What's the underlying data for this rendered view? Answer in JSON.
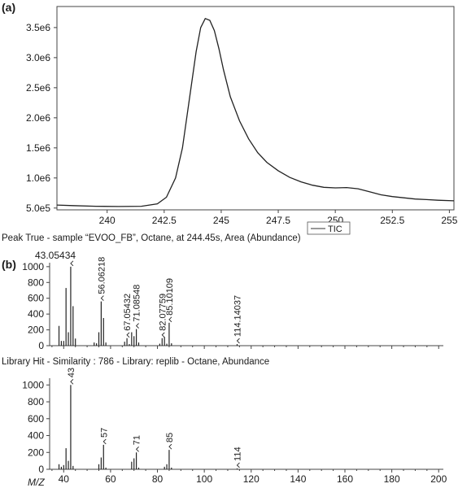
{
  "panel_a": {
    "label": "(a)"
  },
  "panel_b": {
    "label": "(b)"
  },
  "captions": {
    "peak_true": "Peak True - sample “EVOO_FB”, Octane, at 244.45s, Area (Abundance)",
    "library_hit": "Library Hit - Similarity : 786 - Library: replib - Octane, Abundance"
  },
  "chart_data": [
    {
      "type": "line",
      "title": "",
      "xlabel": "",
      "ylabel": "",
      "xlim": [
        237.8,
        255.2
      ],
      "ylim": [
        470000,
        3850000
      ],
      "x_ticks": [
        240,
        242.5,
        245,
        247.5,
        250,
        252.5,
        255
      ],
      "x_tick_labels": [
        "240",
        "242.5",
        "245",
        "247.5",
        "250",
        "252.5",
        "255"
      ],
      "y_ticks": [
        500000,
        1000000,
        1500000,
        2000000,
        2500000,
        3000000,
        3500000
      ],
      "y_tick_labels": [
        "5.0e5",
        "1.0e6",
        "1.5e6",
        "2.0e6",
        "2.5e6",
        "3.0e6",
        "3.5e6"
      ],
      "legend": {
        "position": "bottom-right",
        "entries": [
          "TIC"
        ]
      },
      "series": [
        {
          "name": "TIC",
          "x": [
            237.8,
            238.5,
            239.5,
            240.5,
            241.5,
            242.2,
            242.6,
            243.0,
            243.3,
            243.6,
            243.9,
            244.1,
            244.3,
            244.5,
            244.7,
            244.9,
            245.1,
            245.4,
            245.8,
            246.2,
            246.6,
            247.0,
            247.5,
            248.0,
            248.5,
            249.0,
            249.5,
            250.0,
            250.5,
            251.0,
            251.5,
            252.0,
            252.5,
            253.0,
            253.5,
            254.0,
            254.5,
            255.2
          ],
          "y": [
            550000,
            540000,
            530000,
            525000,
            530000,
            570000,
            680000,
            1000000,
            1500000,
            2300000,
            3100000,
            3500000,
            3650000,
            3620000,
            3450000,
            3150000,
            2800000,
            2350000,
            1950000,
            1650000,
            1420000,
            1260000,
            1120000,
            1010000,
            935000,
            880000,
            845000,
            835000,
            840000,
            820000,
            770000,
            720000,
            690000,
            670000,
            650000,
            640000,
            630000,
            620000
          ]
        }
      ]
    },
    {
      "type": "bar",
      "title": "",
      "xlabel": "",
      "ylabel": "",
      "xlim": [
        34,
        202
      ],
      "ylim": [
        0,
        1050
      ],
      "y_ticks": [
        0,
        200,
        400,
        600,
        800,
        1000
      ],
      "y_tick_labels": [
        "0",
        "200",
        "400",
        "600",
        "800",
        "1000"
      ],
      "x_ticks": [
        40,
        60,
        80,
        100,
        120,
        140,
        160,
        180,
        200
      ],
      "peak_labels": [
        {
          "x": 43,
          "y": 1000,
          "text": "43.05434"
        },
        {
          "x": 56,
          "y": 560,
          "text": "56.06218"
        },
        {
          "x": 67,
          "y": 95,
          "text": "67.05432"
        },
        {
          "x": 71,
          "y": 210,
          "text": "71.08548"
        },
        {
          "x": 82,
          "y": 95,
          "text": "82.07759"
        },
        {
          "x": 85,
          "y": 290,
          "text": "85.10109"
        },
        {
          "x": 114,
          "y": 20,
          "text": "114.14037"
        }
      ],
      "x": [
        38,
        39,
        40,
        41,
        42,
        43,
        44,
        45,
        53,
        54,
        55,
        56,
        57,
        58,
        66,
        67,
        68,
        69,
        70,
        71,
        72,
        81,
        82,
        83,
        84,
        85,
        86,
        114
      ],
      "values": [
        250,
        60,
        60,
        730,
        170,
        1000,
        500,
        90,
        40,
        30,
        170,
        560,
        350,
        40,
        50,
        95,
        20,
        170,
        120,
        210,
        40,
        25,
        95,
        110,
        25,
        290,
        30,
        20
      ]
    },
    {
      "type": "bar",
      "title": "",
      "xlabel": "M/Z",
      "ylabel": "",
      "xlim": [
        34,
        202
      ],
      "ylim": [
        0,
        1080
      ],
      "y_ticks": [
        0,
        200,
        400,
        600,
        800,
        1000
      ],
      "y_tick_labels": [
        "0",
        "200",
        "400",
        "600",
        "800",
        "1000"
      ],
      "x_ticks": [
        40,
        60,
        80,
        100,
        120,
        140,
        160,
        180,
        200
      ],
      "x_tick_labels": [
        "40",
        "60",
        "80",
        "100",
        "120",
        "140",
        "160",
        "180",
        "200"
      ],
      "peak_labels": [
        {
          "x": 43,
          "y": 1000,
          "text": "43"
        },
        {
          "x": 57,
          "y": 290,
          "text": "57"
        },
        {
          "x": 71,
          "y": 200,
          "text": "71"
        },
        {
          "x": 85,
          "y": 230,
          "text": "85"
        },
        {
          "x": 114,
          "y": 10,
          "text": "114"
        }
      ],
      "x": [
        38,
        39,
        40,
        41,
        42,
        43,
        44,
        55,
        56,
        57,
        58,
        69,
        70,
        71,
        72,
        83,
        84,
        85,
        86,
        114
      ],
      "values": [
        60,
        30,
        50,
        250,
        100,
        1000,
        40,
        60,
        140,
        290,
        20,
        90,
        130,
        200,
        20,
        30,
        60,
        230,
        20,
        10
      ]
    }
  ]
}
